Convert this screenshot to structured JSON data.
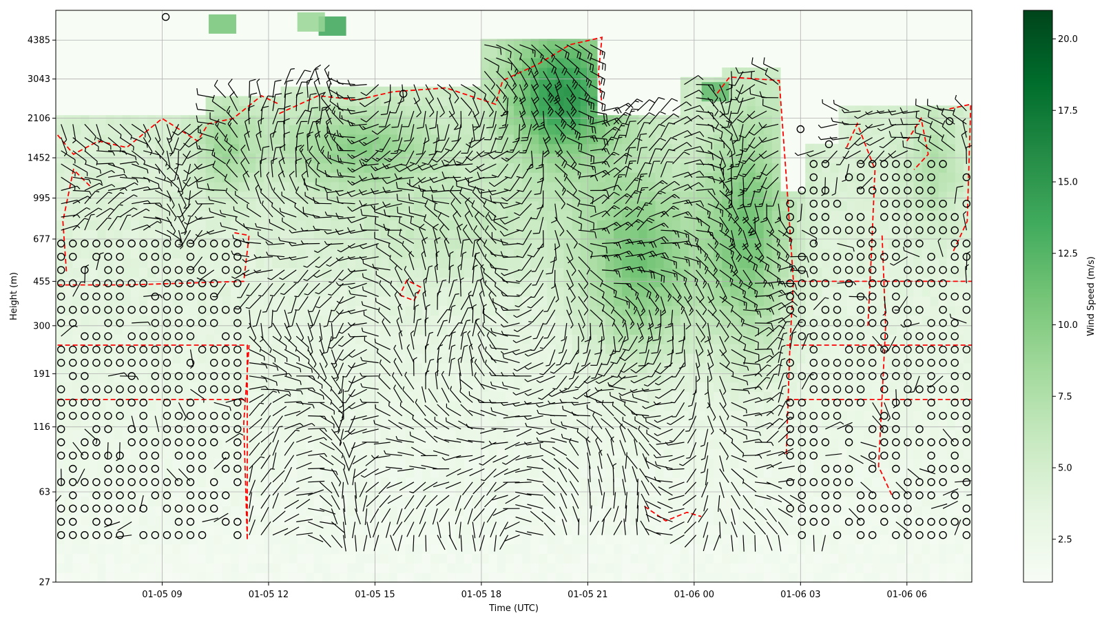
{
  "chart_data": {
    "type": "heatmap",
    "subtype": "wind-barb time-height plot",
    "title": "",
    "xlabel": "Time (UTC)",
    "ylabel": "Height (m)",
    "x_ticks": [
      "01-05 09",
      "01-05 12",
      "01-05 15",
      "01-05 18",
      "01-05 21",
      "01-06 00",
      "01-06 03",
      "01-06 06"
    ],
    "x_range_hours_utc": [
      "01-05 06:00",
      "01-06 07:50"
    ],
    "y_scale": "log",
    "y_ticks": [
      27,
      63,
      116,
      191,
      300,
      455,
      677,
      995,
      1452,
      2106,
      3043,
      4385
    ],
    "ylim": [
      27,
      5800
    ],
    "grid": true,
    "colorbar": {
      "label": "Wind Speed (m/s)",
      "colormap": "Greens",
      "ticks": [
        "2.5",
        "5.0",
        "7.5",
        "10.0",
        "12.5",
        "15.0",
        "17.5",
        "20.0"
      ],
      "range": [
        1,
        21
      ]
    },
    "colors": {
      "barb": "#000000",
      "contour": "#ff0000",
      "low": "#f7fcf5",
      "high": "#00441b",
      "grid": "#b0b0b0"
    },
    "overlays": [
      "wind barbs",
      "calm markers (circles)",
      "red dashed contour"
    ]
  }
}
